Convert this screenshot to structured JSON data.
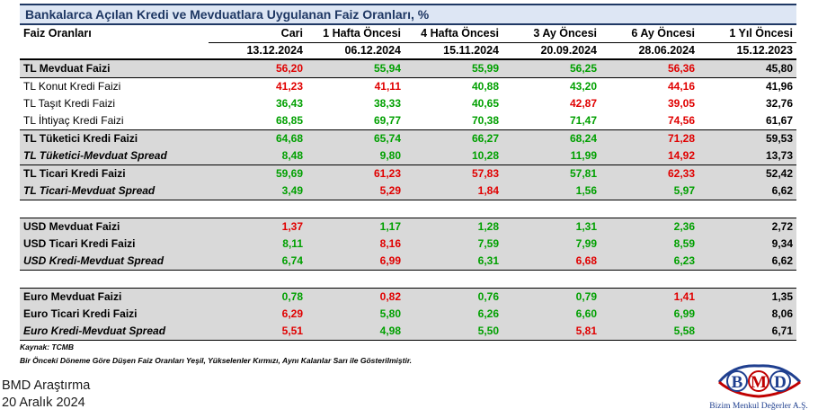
{
  "title": "Bankalarca Açılan Kredi ve Mevduatlara Uygulanan Faiz Oranları, %",
  "header": {
    "row_label": "Faiz Oranları",
    "columns": [
      {
        "name": "Cari",
        "date": "13.12.2024"
      },
      {
        "name": "1 Hafta Öncesi",
        "date": "06.12.2024"
      },
      {
        "name": "4 Hafta Öncesi",
        "date": "15.11.2024"
      },
      {
        "name": "3 Ay Öncesi",
        "date": "20.09.2024"
      },
      {
        "name": "6 Ay Öncesi",
        "date": "28.06.2024"
      },
      {
        "name": "1 Yıl Öncesi",
        "date": "15.12.2023"
      }
    ]
  },
  "colors": {
    "decrease": "#00A000",
    "increase": "#E00000",
    "unchanged": "#000000",
    "title_bar": "#DDE6F4",
    "title_text": "#1F3864",
    "shade": "#D9D9D9"
  },
  "rows": [
    {
      "label": "TL Mevduat Faizi",
      "values": [
        "56,20",
        "55,94",
        "55,99",
        "56,25",
        "56,36",
        "45,80"
      ],
      "colors": [
        "red",
        "green",
        "green",
        "green",
        "red",
        "black"
      ]
    },
    {
      "label": "TL Konut Kredi Faizi",
      "values": [
        "41,23",
        "41,11",
        "40,88",
        "43,20",
        "44,16",
        "41,96"
      ],
      "colors": [
        "red",
        "red",
        "green",
        "green",
        "red",
        "black"
      ]
    },
    {
      "label": "TL Taşıt Kredi Faizi",
      "values": [
        "36,43",
        "38,33",
        "40,65",
        "42,87",
        "39,05",
        "32,76"
      ],
      "colors": [
        "green",
        "green",
        "green",
        "red",
        "red",
        "black"
      ]
    },
    {
      "label": "TL İhtiyaç Kredi Faizi",
      "values": [
        "68,85",
        "69,77",
        "70,38",
        "71,47",
        "74,56",
        "61,67"
      ],
      "colors": [
        "green",
        "green",
        "green",
        "green",
        "red",
        "black"
      ]
    },
    {
      "label": "TL Tüketici Kredi Faizi",
      "values": [
        "64,68",
        "65,74",
        "66,27",
        "68,24",
        "71,28",
        "59,53"
      ],
      "colors": [
        "green",
        "green",
        "green",
        "green",
        "red",
        "black"
      ]
    },
    {
      "label": "TL Tüketici-Mevduat Spread",
      "values": [
        "8,48",
        "9,80",
        "10,28",
        "11,99",
        "14,92",
        "13,73"
      ],
      "colors": [
        "green",
        "green",
        "green",
        "green",
        "red",
        "black"
      ]
    },
    {
      "label": "TL Ticari Kredi Faizi",
      "values": [
        "59,69",
        "61,23",
        "57,83",
        "57,81",
        "62,33",
        "52,42"
      ],
      "colors": [
        "green",
        "red",
        "red",
        "green",
        "red",
        "black"
      ]
    },
    {
      "label": "TL Ticari-Mevduat Spread",
      "values": [
        "3,49",
        "5,29",
        "1,84",
        "1,56",
        "5,97",
        "6,62"
      ],
      "colors": [
        "green",
        "red",
        "red",
        "green",
        "green",
        "black"
      ]
    },
    {
      "label": "USD Mevduat Faizi",
      "values": [
        "1,37",
        "1,17",
        "1,28",
        "1,31",
        "2,36",
        "2,72"
      ],
      "colors": [
        "red",
        "green",
        "green",
        "green",
        "green",
        "black"
      ]
    },
    {
      "label": "USD Ticari Kredi Faizi",
      "values": [
        "8,11",
        "8,16",
        "7,59",
        "7,99",
        "8,59",
        "9,34"
      ],
      "colors": [
        "green",
        "red",
        "green",
        "green",
        "green",
        "black"
      ]
    },
    {
      "label": "USD Kredi-Mevduat Spread",
      "values": [
        "6,74",
        "6,99",
        "6,31",
        "6,68",
        "6,23",
        "6,62"
      ],
      "colors": [
        "green",
        "red",
        "green",
        "red",
        "green",
        "black"
      ]
    },
    {
      "label": "Euro Mevduat Faizi",
      "values": [
        "0,78",
        "0,82",
        "0,76",
        "0,79",
        "1,41",
        "1,35"
      ],
      "colors": [
        "green",
        "red",
        "green",
        "green",
        "red",
        "black"
      ]
    },
    {
      "label": "Euro Ticari Kredi Faizi",
      "values": [
        "6,29",
        "5,80",
        "6,26",
        "6,60",
        "6,99",
        "8,06"
      ],
      "colors": [
        "red",
        "green",
        "green",
        "green",
        "green",
        "black"
      ]
    },
    {
      "label": "Euro Kredi-Mevduat Spread",
      "values": [
        "5,51",
        "4,98",
        "5,50",
        "5,81",
        "5,58",
        "6,71"
      ],
      "colors": [
        "red",
        "green",
        "green",
        "red",
        "green",
        "black"
      ]
    }
  ],
  "source": "Kaynak: TCMB",
  "note": "Bir Önceki Döneme Göre Düşen Faiz Oranları Yeşil, Yükselenler Kırmızı, Aynı Kalanlar Sarı ile Gösterilmiştir.",
  "footer": {
    "line1": "BMD Araştırma",
    "line2": "20 Aralık 2024"
  },
  "logo": {
    "text": "BMD",
    "subtitle": "Bizim Menkul Değerler A.Ş."
  }
}
